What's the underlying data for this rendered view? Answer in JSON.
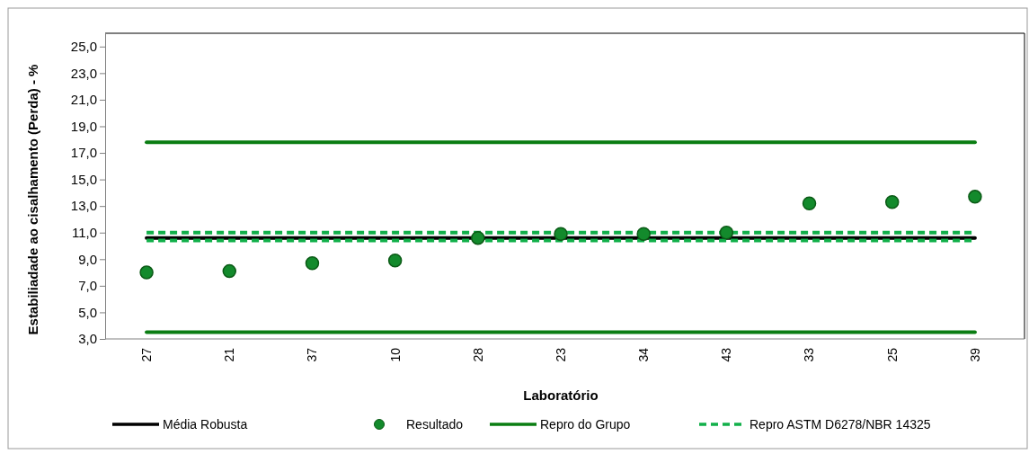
{
  "chart_data": {
    "type": "scatter",
    "xlabel": "Laboratório",
    "ylabel": "Estabiliadade  ao cisalhamento (Perda) - %",
    "categories": [
      "27",
      "21",
      "37",
      "10",
      "28",
      "23",
      "34",
      "43",
      "33",
      "25",
      "39"
    ],
    "ylim": [
      3,
      26
    ],
    "yticks": [
      {
        "value": 3,
        "label": "3,0"
      },
      {
        "value": 5,
        "label": "5,0"
      },
      {
        "value": 7,
        "label": "7,0"
      },
      {
        "value": 9,
        "label": "9,0"
      },
      {
        "value": 11,
        "label": "11,0"
      },
      {
        "value": 13,
        "label": "13,0"
      },
      {
        "value": 15,
        "label": "15,0"
      },
      {
        "value": 17,
        "label": "17,0"
      },
      {
        "value": 19,
        "label": "19,0"
      },
      {
        "value": 21,
        "label": "21,0"
      },
      {
        "value": 23,
        "label": "23,0"
      },
      {
        "value": 25,
        "label": "25,0"
      }
    ],
    "grid": false,
    "legend": "bottom",
    "series": [
      {
        "name": "Média Robusta",
        "type": "line",
        "color": "#000000",
        "line_style": "solid",
        "marker": "none",
        "values": [
          10.6,
          10.6,
          10.6,
          10.6,
          10.6,
          10.6,
          10.6,
          10.6,
          10.6,
          10.6,
          10.6
        ]
      },
      {
        "name": "Resultado",
        "color": "#138a2c",
        "marker": "circle",
        "values": [
          8.0,
          8.1,
          8.7,
          8.9,
          10.6,
          10.9,
          10.9,
          11.0,
          13.2,
          13.3,
          13.7
        ]
      },
      {
        "name": "Repro do Grupo",
        "type": "line",
        "color": "#0a7d12",
        "line_style": "solid",
        "marker": "none",
        "values": [
          17.8,
          17.8,
          17.8,
          17.8,
          17.8,
          17.8,
          17.8,
          17.8,
          17.8,
          17.8,
          17.8
        ]
      },
      {
        "type": "line",
        "color": "#0a7d12",
        "line_style": "solid",
        "marker": "none",
        "values": [
          3.5,
          3.5,
          3.5,
          3.5,
          3.5,
          3.5,
          3.5,
          3.5,
          3.5,
          3.5,
          3.5
        ]
      },
      {
        "name": "Repro ASTM D6278/NBR 14325",
        "type": "line",
        "color": "#12b04a",
        "line_style": "dashed",
        "marker": "none",
        "values": [
          11.0,
          11.0,
          11.0,
          11.0,
          11.0,
          11.0,
          11.0,
          11.0,
          11.0,
          11.0,
          11.0
        ]
      },
      {
        "type": "line",
        "color": "#12b04a",
        "line_style": "dashed",
        "marker": "none",
        "values": [
          10.4,
          10.4,
          10.4,
          10.4,
          10.4,
          10.4,
          10.4,
          10.4,
          10.4,
          10.4,
          10.4
        ]
      }
    ]
  }
}
